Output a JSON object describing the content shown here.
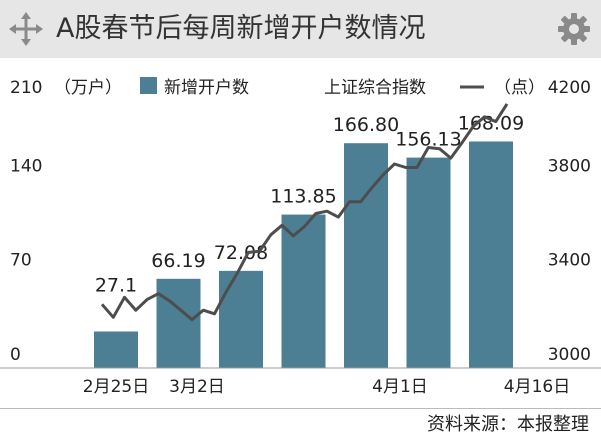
{
  "header": {
    "title": "A股春节后每周新增开户数情况",
    "move_icon": "move-arrows-icon",
    "settings_icon": "gear-icon"
  },
  "colors": {
    "bar": "#4c7f94",
    "line": "#4d4d4d",
    "header_bg": "#e6e6e6"
  },
  "chart_data": {
    "type": "bar",
    "title": "A股春节后每周新增开户数情况",
    "left_axis": {
      "unit_label": "（万户）",
      "ticks": [
        "210",
        "140",
        "70",
        "0"
      ],
      "range": [
        0,
        210
      ]
    },
    "right_axis": {
      "unit_label": "（点）",
      "ticks": [
        "4200",
        "3800",
        "3400",
        "3000"
      ],
      "range": [
        3000,
        4200
      ]
    },
    "legend": {
      "bar_label": "新增开户数",
      "line_label": "上证综合指数",
      "placement": "top"
    },
    "x_labels": [
      "2月25日",
      "3月2日",
      "4月1日",
      "4月16日"
    ],
    "series": [
      {
        "name": "新增开户数",
        "kind": "bar",
        "axis": "left",
        "values": [
          27.1,
          66.19,
          72.08,
          113.85,
          166.8,
          156.13,
          168.09
        ],
        "labels": [
          "27.1",
          "66.19",
          "72.08",
          "113.85",
          "166.80",
          "156.13",
          "168.09"
        ]
      },
      {
        "name": "上证综合指数",
        "kind": "line",
        "axis": "right",
        "values": [
          3270,
          3215,
          3300,
          3245,
          3290,
          3315,
          3285,
          3245,
          3205,
          3245,
          3230,
          3320,
          3400,
          3490,
          3495,
          3565,
          3605,
          3560,
          3600,
          3655,
          3665,
          3640,
          3705,
          3705,
          3765,
          3820,
          3865,
          3850,
          3850,
          3935,
          3930,
          3890,
          3955,
          4025,
          4065,
          4045,
          4120
        ]
      }
    ],
    "grid": false
  },
  "footer": {
    "source": "资料来源：本报整理"
  }
}
